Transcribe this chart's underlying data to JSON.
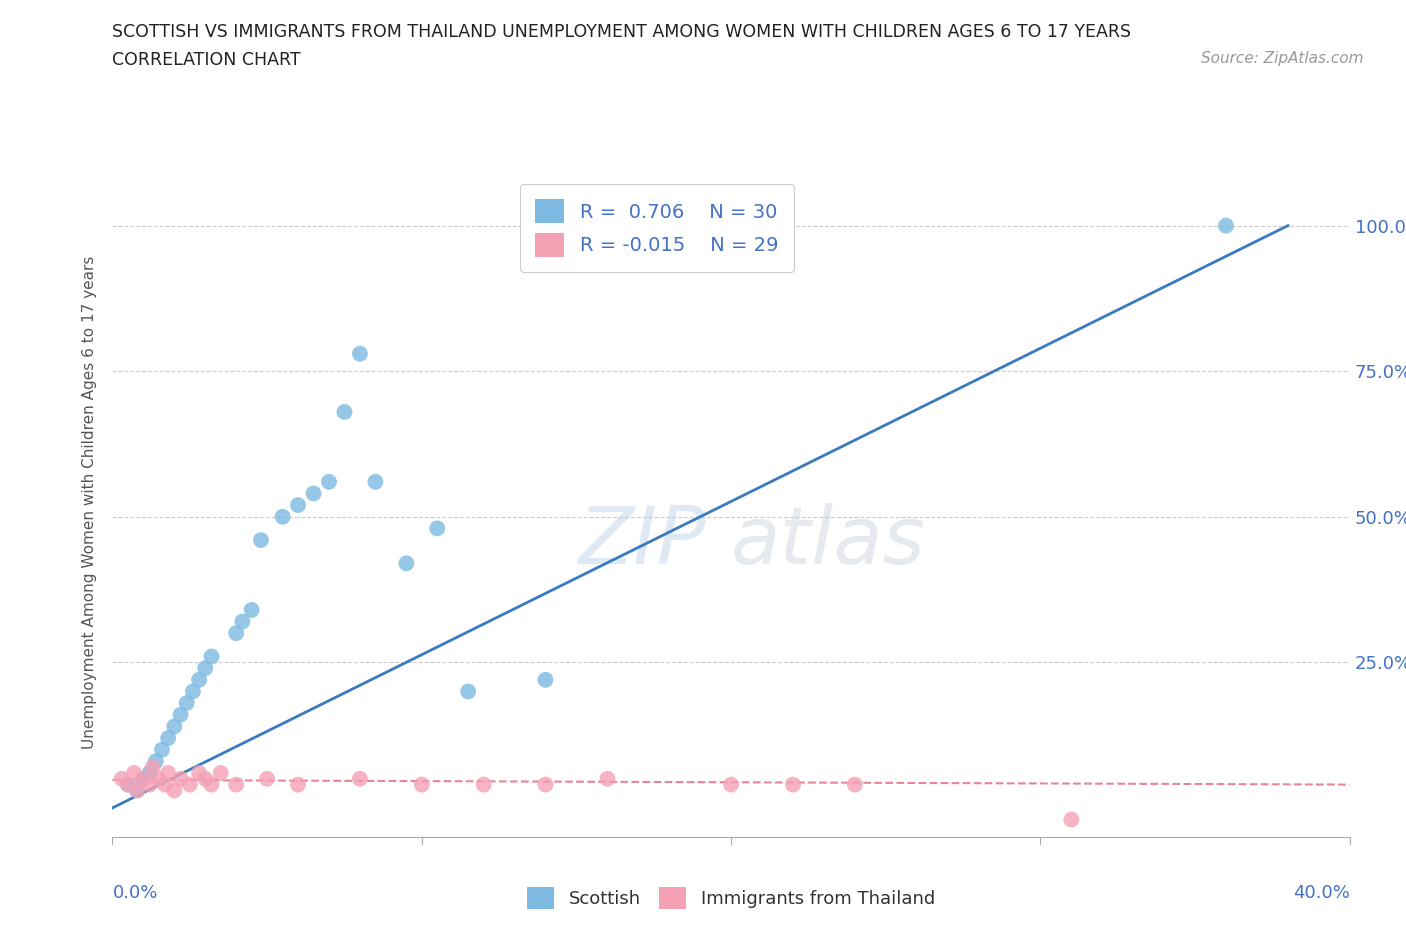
{
  "title_line1": "SCOTTISH VS IMMIGRANTS FROM THAILAND UNEMPLOYMENT AMONG WOMEN WITH CHILDREN AGES 6 TO 17 YEARS",
  "title_line2": "CORRELATION CHART",
  "source_text": "Source: ZipAtlas.com",
  "ylabel": "Unemployment Among Women with Children Ages 6 to 17 years",
  "watermark_zip": "ZIP",
  "watermark_atlas": "atlas",
  "xlim": [
    0.0,
    0.4
  ],
  "ylim": [
    -0.05,
    1.1
  ],
  "legend_R1": "R =  0.706",
  "legend_N1": "N = 30",
  "legend_R2": "R = -0.015",
  "legend_N2": "N = 29",
  "blue_color": "#7db9e0",
  "pink_color": "#f4a0b5",
  "line_blue": "#3a7abf",
  "line_pink": "#e8849a",
  "grid_color": "#cccccc",
  "title_color": "#222222",
  "axis_label_color": "#555555",
  "tick_color_blue": "#4472c4",
  "scottish_x": [
    0.005,
    0.008,
    0.01,
    0.012,
    0.014,
    0.016,
    0.018,
    0.02,
    0.022,
    0.024,
    0.026,
    0.028,
    0.03,
    0.032,
    0.04,
    0.042,
    0.045,
    0.048,
    0.055,
    0.06,
    0.065,
    0.07,
    0.075,
    0.08,
    0.085,
    0.095,
    0.105,
    0.115,
    0.14,
    0.36
  ],
  "scottish_y": [
    0.04,
    0.03,
    0.05,
    0.06,
    0.08,
    0.1,
    0.12,
    0.14,
    0.16,
    0.18,
    0.2,
    0.22,
    0.24,
    0.26,
    0.3,
    0.32,
    0.34,
    0.46,
    0.5,
    0.52,
    0.54,
    0.56,
    0.68,
    0.78,
    0.56,
    0.42,
    0.48,
    0.2,
    0.22,
    1.0
  ],
  "thailand_x": [
    0.003,
    0.005,
    0.007,
    0.008,
    0.01,
    0.012,
    0.013,
    0.015,
    0.017,
    0.018,
    0.02,
    0.022,
    0.025,
    0.028,
    0.03,
    0.032,
    0.035,
    0.04,
    0.05,
    0.06,
    0.08,
    0.1,
    0.12,
    0.14,
    0.16,
    0.2,
    0.22,
    0.24,
    0.31
  ],
  "thailand_y": [
    0.05,
    0.04,
    0.06,
    0.03,
    0.05,
    0.04,
    0.07,
    0.05,
    0.04,
    0.06,
    0.03,
    0.05,
    0.04,
    0.06,
    0.05,
    0.04,
    0.06,
    0.04,
    0.05,
    0.04,
    0.05,
    0.04,
    0.04,
    0.04,
    0.05,
    0.04,
    0.04,
    0.04,
    -0.02
  ],
  "blue_line_x": [
    0.0,
    0.38
  ],
  "blue_line_y": [
    0.0,
    1.0
  ],
  "pink_line_x": [
    0.0,
    0.4
  ],
  "pink_line_y": [
    0.048,
    0.04
  ]
}
